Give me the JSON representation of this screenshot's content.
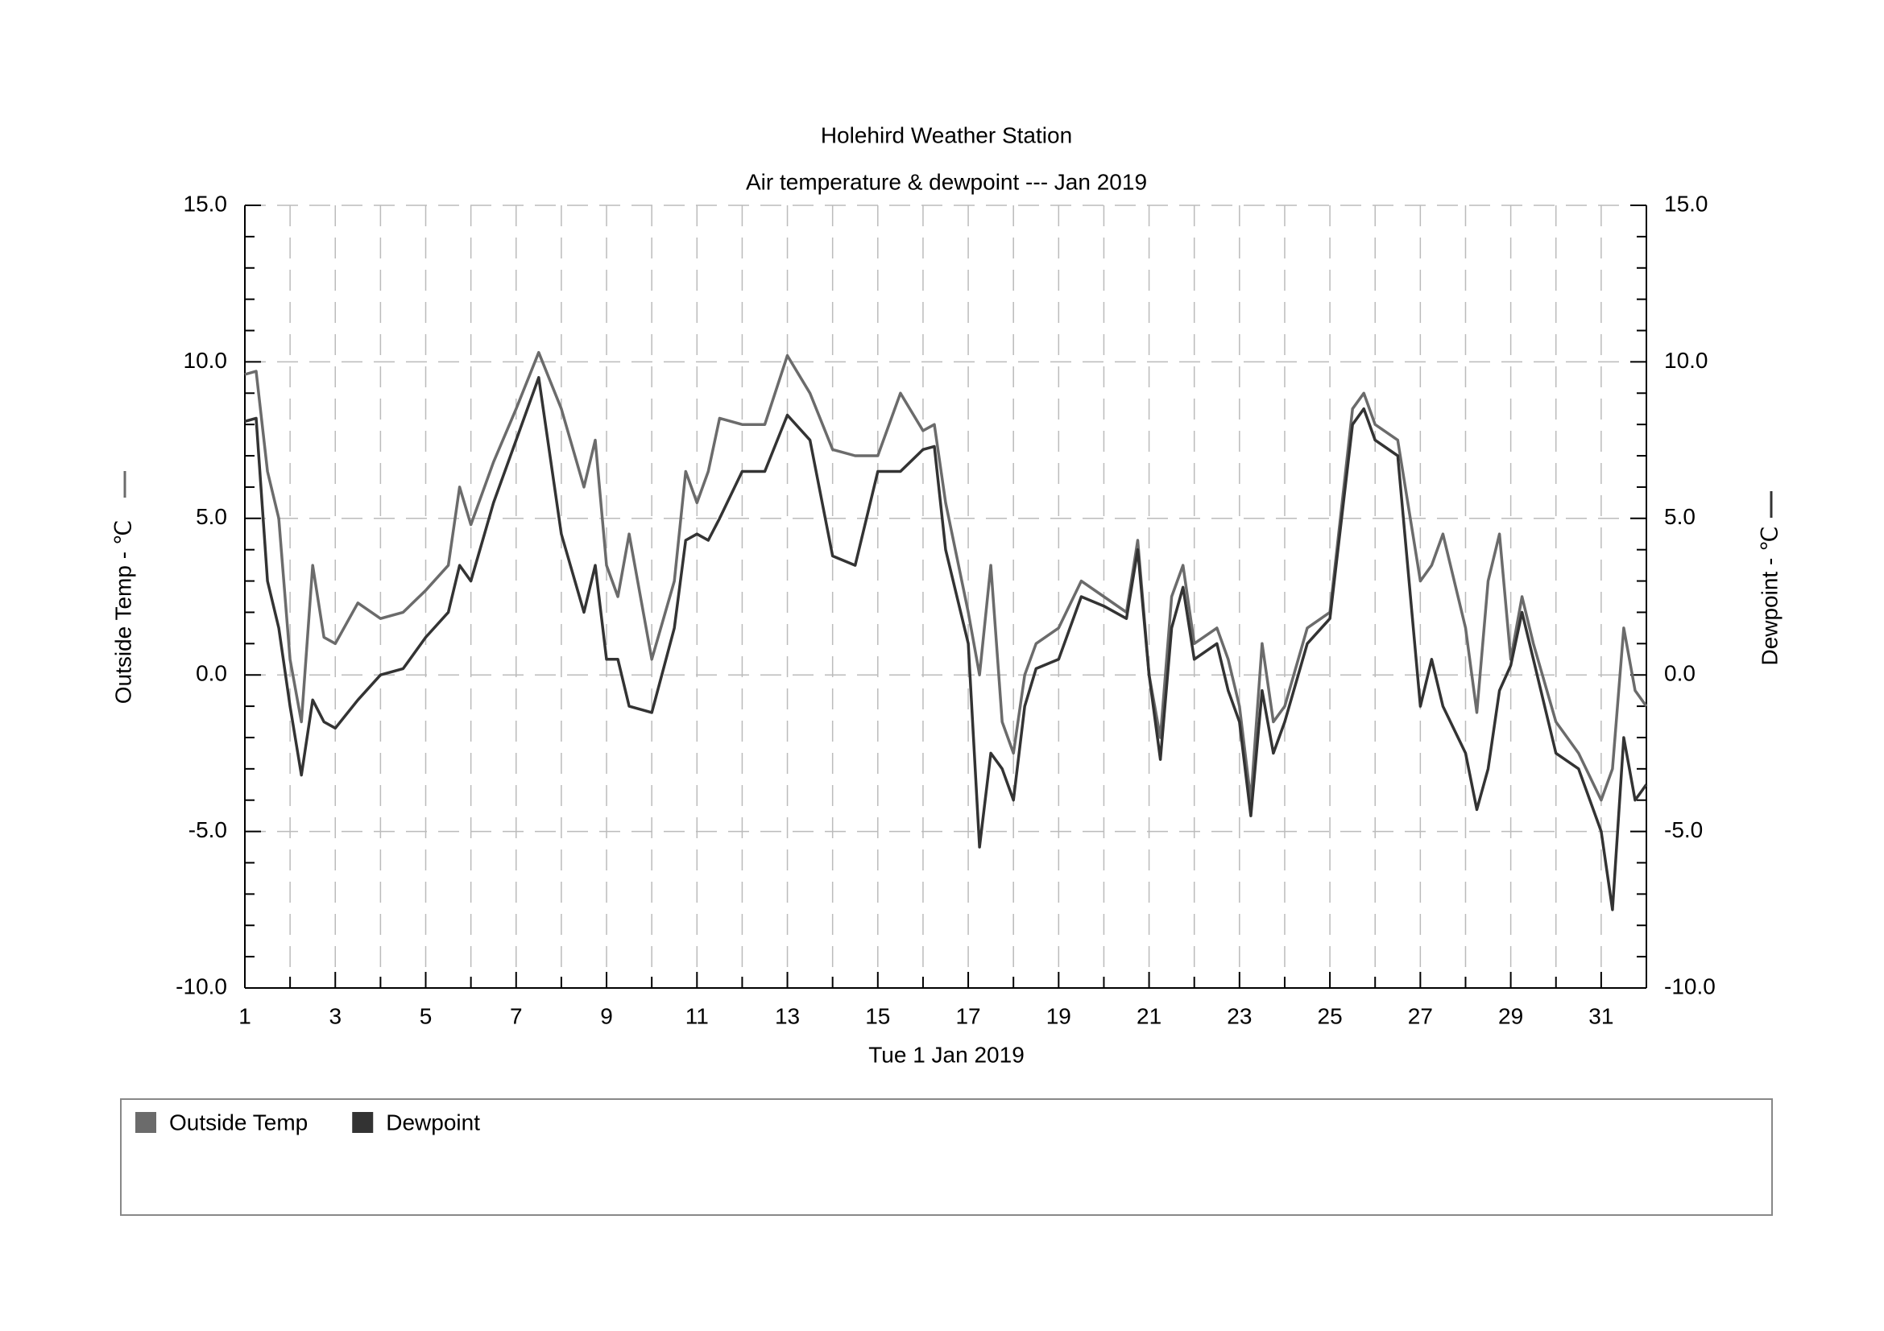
{
  "chart_data": {
    "type": "line",
    "title": "Holehird Weather Station",
    "subtitle": "Air temperature & dewpoint --- Jan 2019",
    "x_label": "Tue 1 Jan 2019",
    "y_label": "Outside Temp - ℃",
    "y2_label": "Dewpoint - ℃",
    "x": [
      1,
      1.25,
      1.5,
      1.75,
      2,
      2.25,
      2.5,
      2.75,
      3,
      3.5,
      4,
      4.5,
      5,
      5.5,
      5.75,
      6,
      6.5,
      7,
      7.5,
      8,
      8.5,
      8.75,
      9,
      9.25,
      9.5,
      10,
      10.5,
      10.75,
      11,
      11.25,
      11.5,
      12,
      12.5,
      13,
      13.5,
      14,
      14.5,
      15,
      15.5,
      16,
      16.25,
      16.5,
      17,
      17.25,
      17.5,
      17.75,
      18,
      18.25,
      18.5,
      19,
      19.5,
      20,
      20.5,
      20.75,
      21,
      21.25,
      21.5,
      21.75,
      22,
      22.5,
      22.75,
      23,
      23.25,
      23.5,
      23.75,
      24,
      24.5,
      25,
      25.5,
      25.75,
      26,
      26.5,
      27,
      27.25,
      27.5,
      28,
      28.25,
      28.5,
      28.75,
      29,
      29.25,
      29.5,
      30,
      30.5,
      31,
      31.25,
      31.5,
      31.75,
      32
    ],
    "series": [
      {
        "name": "Outside Temp",
        "color": "#6b6b6b",
        "values": [
          9.6,
          9.7,
          6.5,
          5,
          0.5,
          -1.5,
          3.5,
          1.2,
          1.0,
          2.3,
          1.8,
          2.0,
          2.7,
          3.5,
          6,
          4.8,
          6.8,
          8.5,
          10.3,
          8.5,
          6,
          7.5,
          3.5,
          2.5,
          4.5,
          0.5,
          3,
          6.5,
          5.5,
          6.5,
          8.2,
          8,
          8,
          10.2,
          9,
          7.2,
          7,
          7,
          9,
          7.8,
          8,
          5.5,
          2,
          0,
          3.5,
          -1.5,
          -2.5,
          0,
          1,
          1.5,
          3,
          2.5,
          2,
          4.3,
          0,
          -2,
          2.5,
          3.5,
          1,
          1.5,
          0.5,
          -1,
          -4,
          1,
          -1.5,
          -1,
          1.5,
          2,
          8.5,
          9,
          8,
          7.5,
          3,
          3.5,
          4.5,
          1.5,
          -1.2,
          3,
          4.5,
          0.5,
          2.5,
          1,
          -1.5,
          -2.5,
          -4,
          -3,
          1.5,
          -0.5,
          -1
        ]
      },
      {
        "name": "Dewpoint",
        "color": "#333333",
        "axis": "y2",
        "values": [
          8.1,
          8.2,
          3,
          1.5,
          -1,
          -3.2,
          -0.8,
          -1.5,
          -1.7,
          -0.8,
          0,
          0.2,
          1.2,
          2,
          3.5,
          3,
          5.5,
          7.5,
          9.5,
          4.5,
          2,
          3.5,
          0.5,
          0.5,
          -1,
          -1.2,
          1.5,
          4.3,
          4.5,
          4.3,
          5,
          6.5,
          6.5,
          8.3,
          7.5,
          3.8,
          3.5,
          6.5,
          6.5,
          7.2,
          7.3,
          4,
          1,
          -5.5,
          -2.5,
          -3,
          -4,
          -1,
          0.2,
          0.5,
          2.5,
          2.2,
          1.8,
          4,
          0,
          -2.7,
          1.5,
          2.8,
          0.5,
          1,
          -0.5,
          -1.5,
          -4.5,
          -0.5,
          -2.5,
          -1.5,
          1,
          1.8,
          8,
          8.5,
          7.5,
          7,
          -1,
          0.5,
          -1,
          -2.5,
          -4.3,
          -3,
          -0.5,
          0.3,
          2,
          0.5,
          -2.5,
          -3,
          -5,
          -7.5,
          -2,
          -4,
          -3.5
        ]
      }
    ],
    "xlim": [
      1,
      32
    ],
    "xticks": [
      1,
      3,
      5,
      7,
      9,
      11,
      13,
      15,
      17,
      19,
      21,
      23,
      25,
      27,
      29,
      31
    ],
    "ylim": [
      -10,
      15
    ],
    "yticks": [
      {
        "value": -10,
        "label": "-10.0"
      },
      {
        "value": -5,
        "label": "-5.0"
      },
      {
        "value": 0,
        "label": "0.0"
      },
      {
        "value": 5,
        "label": "5.0"
      },
      {
        "value": 10,
        "label": "10.0"
      },
      {
        "value": 15,
        "label": "15.0"
      }
    ],
    "y2lim": [
      -10,
      15
    ],
    "y2ticks": [
      {
        "value": -10,
        "label": "-10.0"
      },
      {
        "value": -5,
        "label": "-5.0"
      },
      {
        "value": 0,
        "label": "0.0"
      },
      {
        "value": 5,
        "label": "5.0"
      },
      {
        "value": 10,
        "label": "10.0"
      },
      {
        "value": 15,
        "label": "15.0"
      }
    ],
    "grid": true,
    "legend": "bottom"
  }
}
